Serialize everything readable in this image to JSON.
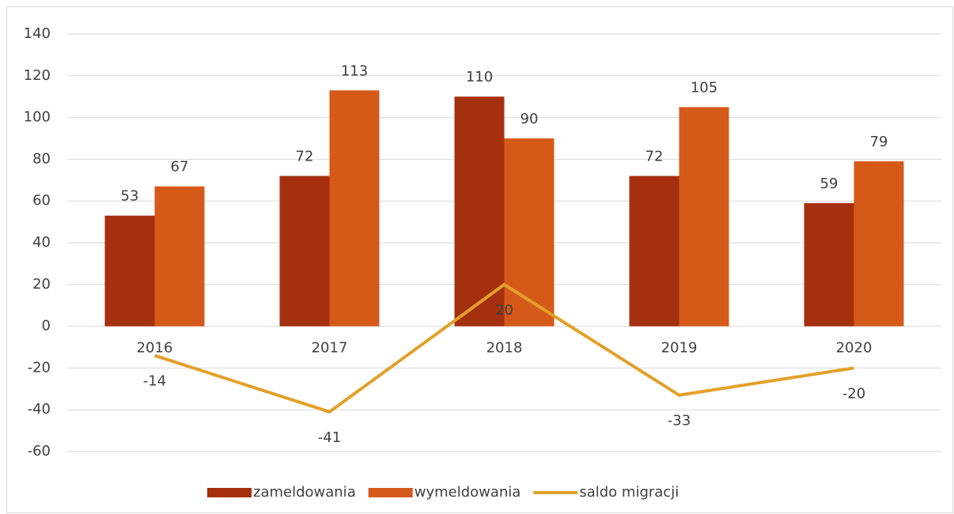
{
  "chart_data": {
    "type": "bar",
    "categories": [
      "2016",
      "2017",
      "2018",
      "2019",
      "2020"
    ],
    "series": [
      {
        "name": "zameldowania",
        "color": "#a5300f",
        "values": [
          53,
          72,
          110,
          72,
          59
        ]
      },
      {
        "name": "wymeldowania",
        "color": "#d55a1a",
        "values": [
          67,
          113,
          90,
          105,
          79
        ]
      },
      {
        "name": "saldo migracji",
        "type": "line",
        "color": "#e3a02a",
        "values": [
          -14,
          -41,
          20,
          -33,
          -20
        ]
      }
    ],
    "ylim": [
      -60,
      140
    ],
    "yticks": [
      -60,
      -40,
      -20,
      0,
      20,
      40,
      60,
      80,
      100,
      120,
      140
    ],
    "grid": true,
    "legend": "bottom"
  }
}
